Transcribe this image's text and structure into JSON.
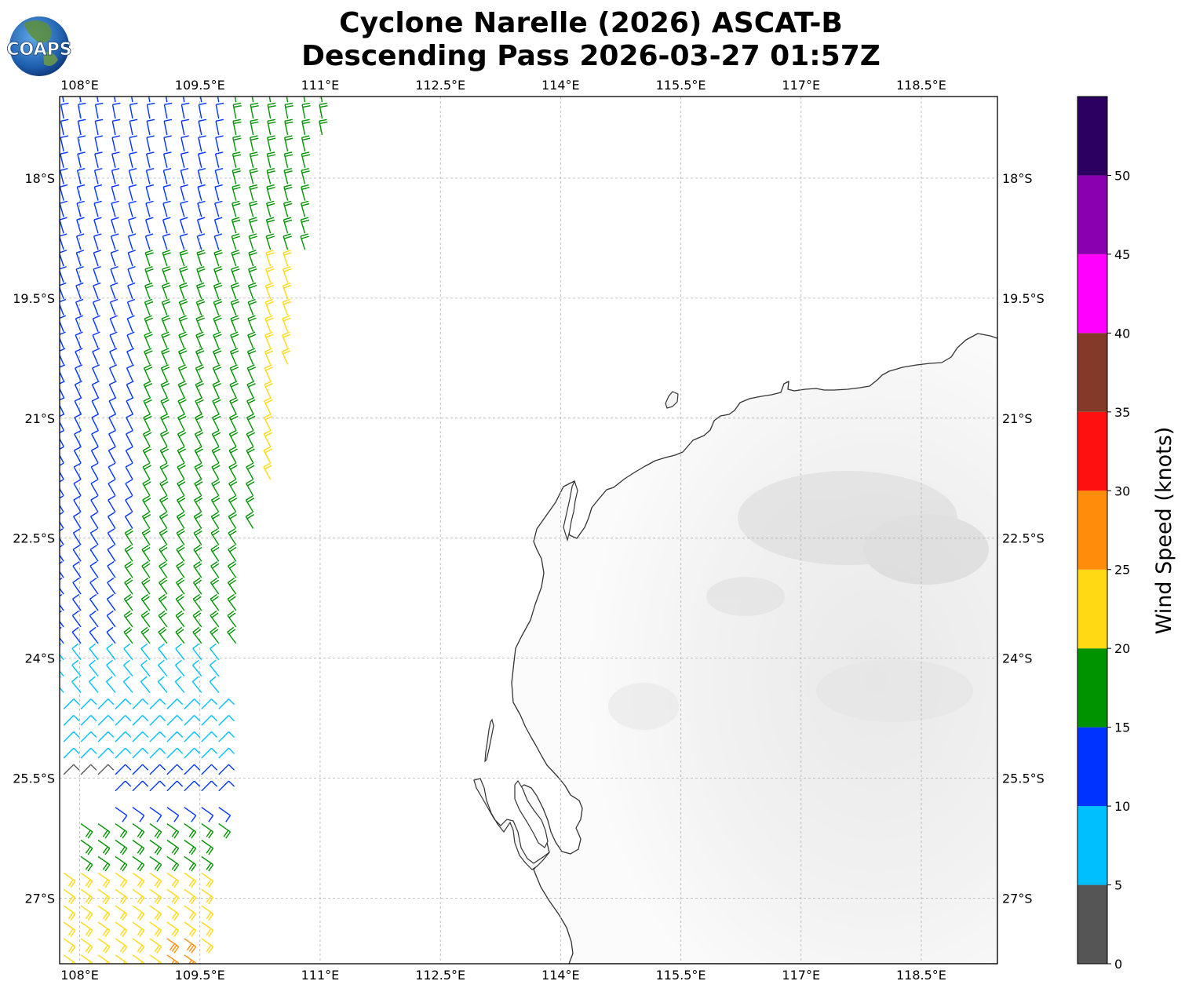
{
  "title": {
    "line1": "Cyclone Narelle (2026) ASCAT-B",
    "line2": "Descending Pass 2026-03-27 01:57Z"
  },
  "logo": {
    "text": "COAPS",
    "icon": "globe-logo-icon"
  },
  "map": {
    "lon_labels": [
      "108°E",
      "109.5°E",
      "111°E",
      "112.5°E",
      "114°E",
      "115.5°E",
      "117°E",
      "118.5°E"
    ],
    "lat_labels": [
      "18°S",
      "19.5°S",
      "21°S",
      "22.5°S",
      "24°S",
      "25.5°S",
      "27°S"
    ],
    "lon_range": [
      107.75,
      119.45
    ],
    "lat_range": [
      -16.98,
      -27.82
    ],
    "coastline_color": "#333333",
    "land_shading": "light grey terrain"
  },
  "colorbar": {
    "label": "Wind Speed (knots)",
    "ticks": [
      "0",
      "5",
      "10",
      "15",
      "20",
      "25",
      "30",
      "35",
      "40",
      "45",
      "50"
    ],
    "bins": [
      {
        "from": 0,
        "to": 5,
        "color": "#555555"
      },
      {
        "from": 5,
        "to": 10,
        "color": "#00bfff"
      },
      {
        "from": 10,
        "to": 15,
        "color": "#0033ff"
      },
      {
        "from": 15,
        "to": 20,
        "color": "#009300"
      },
      {
        "from": 20,
        "to": 25,
        "color": "#ffd914"
      },
      {
        "from": 25,
        "to": 30,
        "color": "#ff8c0a"
      },
      {
        "from": 30,
        "to": 35,
        "color": "#ff1010"
      },
      {
        "from": 35,
        "to": 40,
        "color": "#833a28"
      },
      {
        "from": 40,
        "to": 45,
        "color": "#ff00ff"
      },
      {
        "from": 45,
        "to": 50,
        "color": "#8a00b0"
      },
      {
        "from": 50,
        "to": 55,
        "color": "#2c0060"
      }
    ]
  },
  "swath_wind_regions": [
    {
      "lat": [
        -17.0,
        -19.0
      ],
      "lon": [
        107.8,
        109.8
      ],
      "speed_kt": 12
    },
    {
      "lat": [
        -17.0,
        -19.0
      ],
      "lon": [
        109.8,
        111.1
      ],
      "speed_kt": 17
    },
    {
      "lat": [
        -19.0,
        -22.5
      ],
      "lon": [
        107.8,
        108.8
      ],
      "speed_kt": 12
    },
    {
      "lat": [
        -19.0,
        -22.5
      ],
      "lon": [
        108.8,
        110.3
      ],
      "speed_kt": 17
    },
    {
      "lat": [
        -19.0,
        -22.5
      ],
      "lon": [
        110.3,
        111.0
      ],
      "speed_kt": 22
    },
    {
      "lat": [
        -22.5,
        -24.0
      ],
      "lon": [
        107.8,
        108.6
      ],
      "speed_kt": 12
    },
    {
      "lat": [
        -22.5,
        -24.0
      ],
      "lon": [
        108.6,
        110.0
      ],
      "speed_kt": 17
    },
    {
      "lat": [
        -24.0,
        -25.3
      ],
      "lon": [
        107.8,
        109.9
      ],
      "speed_kt": 8
    },
    {
      "lat": [
        -25.3,
        -25.6
      ],
      "lon": [
        107.8,
        108.3
      ],
      "speed_kt": 3
    },
    {
      "lat": [
        -25.3,
        -26.0
      ],
      "lon": [
        108.3,
        109.9
      ],
      "speed_kt": 11
    },
    {
      "lat": [
        -26.0,
        -26.6
      ],
      "lon": [
        107.9,
        109.8
      ],
      "speed_kt": 17
    },
    {
      "lat": [
        -26.6,
        -27.8
      ],
      "lon": [
        107.8,
        109.6
      ],
      "speed_kt": 22
    },
    {
      "lat": [
        -27.4,
        -27.8
      ],
      "lon": [
        108.9,
        109.5
      ],
      "speed_kt": 27
    }
  ]
}
